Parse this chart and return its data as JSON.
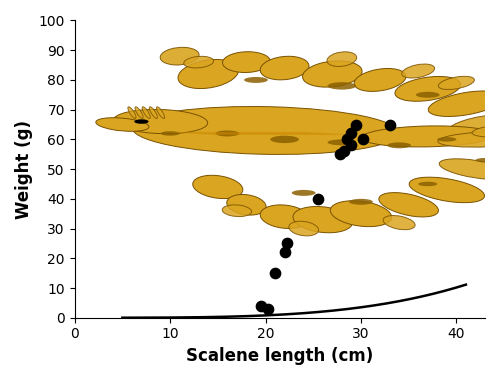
{
  "scatter_x": [
    19.5,
    20.3,
    21.0,
    22.0,
    22.3,
    25.5,
    27.8,
    28.2,
    28.5,
    29.0,
    29.0,
    29.5,
    30.2,
    33.0
  ],
  "scatter_y": [
    4,
    3,
    15,
    22,
    25,
    40,
    55,
    56,
    60,
    58,
    62,
    65,
    60,
    65
  ],
  "curve_a": 1.2e-05,
  "curve_b": 3.7,
  "curve_x_start": 5.0,
  "curve_x_end": 41.0,
  "xlim": [
    0,
    43
  ],
  "ylim": [
    0,
    100
  ],
  "xticks": [
    0,
    10,
    20,
    30,
    40
  ],
  "yticks": [
    0,
    10,
    20,
    30,
    40,
    50,
    60,
    70,
    80,
    90,
    100
  ],
  "xlabel": "Scalene length (cm)",
  "ylabel": "Weight (g)",
  "dot_color": "#000000",
  "dot_size": 55,
  "line_color": "#000000",
  "line_width": 1.8,
  "bg_color": "#ffffff",
  "label_fontsize": 12,
  "tick_fontsize": 10,
  "gold": "#DAA520",
  "gold_dark": "#7a5200",
  "gold_spot": "#8B6000"
}
